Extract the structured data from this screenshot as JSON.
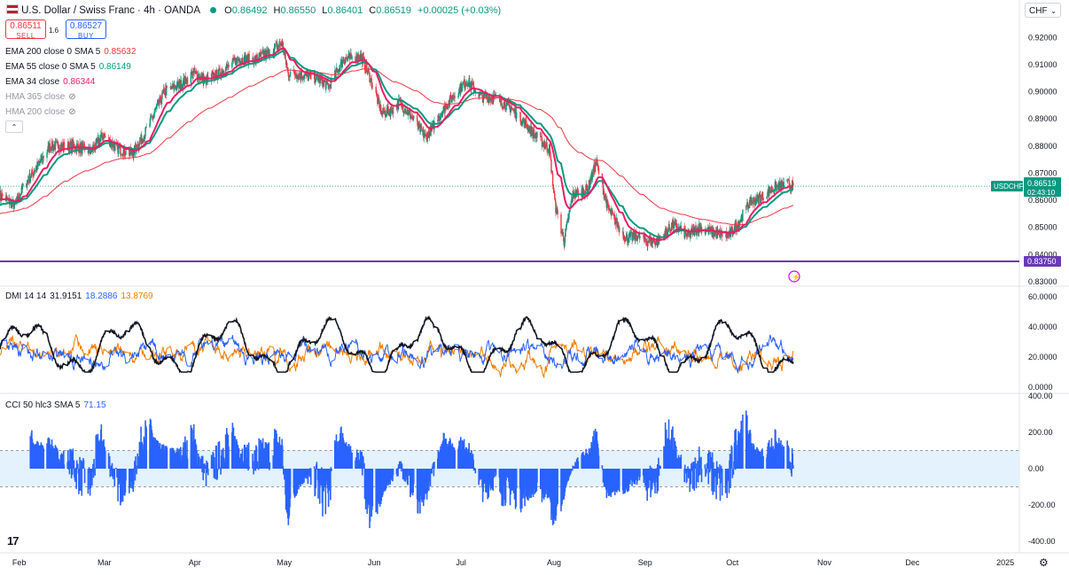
{
  "header": {
    "title": "U.S. Dollar / Swiss Franc · 4h · OANDA",
    "ohlc": {
      "o_label": "O",
      "o": "0.86492",
      "h_label": "H",
      "h": "0.86550",
      "l_label": "L",
      "l": "0.86401",
      "c_label": "C",
      "c": "0.86519",
      "change": "+0.00025 (+0.03%)"
    },
    "currency": "CHF"
  },
  "trade": {
    "sell_price": "0.86511",
    "sell_label": "SELL",
    "spread": "1.6",
    "buy_price": "0.86527",
    "buy_label": "BUY"
  },
  "legend": {
    "ema200": {
      "name": "EMA 200 close 0 SMA 5",
      "value": "0.85632"
    },
    "ema55": {
      "name": "EMA 55 close 0 SMA 5",
      "value": "0.86149"
    },
    "ema34": {
      "name": "EMA 34 close",
      "value": "0.86344"
    },
    "hma365": {
      "name": "HMA 365 close"
    },
    "hma200": {
      "name": "HMA 200 close"
    },
    "dmi": {
      "name": "DMI 14 14",
      "adx": "31.9151",
      "plus": "18.2886",
      "minus": "13.8769"
    },
    "cci": {
      "name": "CCI 50 hlc3 SMA 5",
      "value": "71.15"
    }
  },
  "price_badges": {
    "symbol": "USDCHF",
    "price": "0.86519",
    "countdown": "02:43:10",
    "line_price": "0.83750"
  },
  "colors": {
    "up": "#089981",
    "down": "#f23645",
    "ema200": "#f23645",
    "ema55": "#089981",
    "ema34": "#e91e63",
    "horizontal": "#673ab7",
    "adx": "#131722",
    "di_plus": "#2962ff",
    "di_minus": "#f57c00",
    "cci": "#2962ff",
    "cci_band": "#e3f2fd"
  },
  "chart_data": [
    {
      "type": "candlestick",
      "series": [
        {
          "name": "USDCHF",
          "values": []
        },
        {
          "name": "EMA 200",
          "values": []
        },
        {
          "name": "EMA 55",
          "values": []
        },
        {
          "name": "EMA 34",
          "values": []
        }
      ],
      "anchors": [
        [
          "2024-01-26",
          0.862
        ],
        [
          "2024-01-31",
          0.858
        ],
        [
          "2024-02-03",
          0.865
        ],
        [
          "2024-02-08",
          0.873
        ],
        [
          "2024-02-12",
          0.88
        ],
        [
          "2024-02-20",
          0.88
        ],
        [
          "2024-02-26",
          0.878
        ],
        [
          "2024-03-01",
          0.884
        ],
        [
          "2024-03-06",
          0.879
        ],
        [
          "2024-03-11",
          0.877
        ],
        [
          "2024-03-15",
          0.884
        ],
        [
          "2024-03-22",
          0.9
        ],
        [
          "2024-03-28",
          0.903
        ],
        [
          "2024-04-01",
          0.907
        ],
        [
          "2024-04-05",
          0.904
        ],
        [
          "2024-04-10",
          0.907
        ],
        [
          "2024-04-16",
          0.912
        ],
        [
          "2024-04-22",
          0.912
        ],
        [
          "2024-04-26",
          0.914
        ],
        [
          "2024-05-01",
          0.918
        ],
        [
          "2024-05-03",
          0.907
        ],
        [
          "2024-05-08",
          0.906
        ],
        [
          "2024-05-13",
          0.905
        ],
        [
          "2024-05-17",
          0.902
        ],
        [
          "2024-05-22",
          0.912
        ],
        [
          "2024-05-28",
          0.913
        ],
        [
          "2024-05-31",
          0.905
        ],
        [
          "2024-06-04",
          0.892
        ],
        [
          "2024-06-07",
          0.893
        ],
        [
          "2024-06-10",
          0.896
        ],
        [
          "2024-06-14",
          0.891
        ],
        [
          "2024-06-19",
          0.883
        ],
        [
          "2024-06-24",
          0.892
        ],
        [
          "2024-06-28",
          0.898
        ],
        [
          "2024-07-03",
          0.904
        ],
        [
          "2024-07-08",
          0.898
        ],
        [
          "2024-07-12",
          0.898
        ],
        [
          "2024-07-18",
          0.894
        ],
        [
          "2024-07-23",
          0.888
        ],
        [
          "2024-07-26",
          0.884
        ],
        [
          "2024-07-31",
          0.879
        ],
        [
          "2024-08-02",
          0.858
        ],
        [
          "2024-08-05",
          0.845
        ],
        [
          "2024-08-08",
          0.862
        ],
        [
          "2024-08-13",
          0.864
        ],
        [
          "2024-08-16",
          0.874
        ],
        [
          "2024-08-20",
          0.857
        ],
        [
          "2024-08-26",
          0.846
        ],
        [
          "2024-08-30",
          0.847
        ],
        [
          "2024-09-02",
          0.845
        ],
        [
          "2024-09-06",
          0.845
        ],
        [
          "2024-09-11",
          0.851
        ],
        [
          "2024-09-16",
          0.847
        ],
        [
          "2024-09-20",
          0.85
        ],
        [
          "2024-09-25",
          0.848
        ],
        [
          "2024-09-30",
          0.847
        ],
        [
          "2024-10-03",
          0.851
        ],
        [
          "2024-10-07",
          0.859
        ],
        [
          "2024-10-11",
          0.861
        ],
        [
          "2024-10-16",
          0.865
        ],
        [
          "2024-10-20",
          0.866
        ],
        [
          "2024-10-22",
          0.8652
        ]
      ],
      "hline": 0.8375,
      "ylim": [
        0.83,
        0.924
      ],
      "yticks": [
        "0.92000",
        "0.91000",
        "0.90000",
        "0.89000",
        "0.88000",
        "0.87000",
        "0.86000",
        "0.85000",
        "0.84000",
        "0.83000"
      ],
      "x_range": [
        "2024-01-26",
        "2025-01-07"
      ],
      "xticks": [
        "Feb",
        "Mar",
        "Apr",
        "May",
        "Jun",
        "Jul",
        "Aug",
        "Sep",
        "Oct",
        "Nov",
        "Dec",
        "2025"
      ]
    },
    {
      "type": "line",
      "series": [
        {
          "name": "ADX",
          "values": []
        },
        {
          "name": "+DI",
          "values": []
        },
        {
          "name": "-DI",
          "values": []
        }
      ],
      "ylim": [
        -3,
        63
      ],
      "yticks": [
        "60.0000",
        "40.0000",
        "20.0000",
        "0.0000"
      ]
    },
    {
      "type": "bar",
      "series": [
        {
          "name": "CCI",
          "values": []
        }
      ],
      "bands": [
        100,
        -100
      ],
      "ylim": [
        -420,
        420
      ],
      "yticks": [
        "400.00",
        "200.00",
        "0.00",
        "-200.00",
        "-400.00"
      ]
    }
  ]
}
